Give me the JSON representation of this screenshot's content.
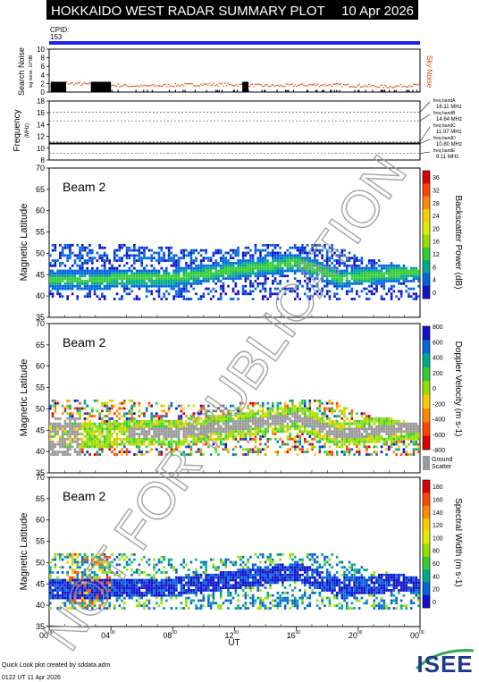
{
  "header": {
    "title": "HOKKAIDO WEST RADAR SUMMARY PLOT",
    "date": "10 Apr 2026",
    "cpid_label": "CPID:",
    "cpid_value": "153"
  },
  "footer": {
    "credit": "Quick Look plot created by sddata.adm",
    "timestamp": "0122 UT 11 Apr 2026",
    "logo_text": "ISEE"
  },
  "watermark": "NOT FOR PUBLICATION",
  "colors": {
    "header_bg": "#000000",
    "cpid_bar": "#2222ee",
    "sky_noise": "#dd4400",
    "ground_scatter": "#999999",
    "logo_blue": "#1e3a8a",
    "logo_green": "#2fa84f"
  },
  "chart_data": [
    {
      "id": "noise",
      "type": "scatter",
      "ylabel": "Search Noise",
      "ylabel_sub": "log noise, 10^dB",
      "ytick_labels": [
        "10",
        "8",
        "6",
        "4",
        "2",
        "0"
      ],
      "ylim": [
        0,
        10
      ],
      "side_label": "Sky Noise",
      "series": [
        {
          "name": "Sky Noise",
          "values": [
            1.8,
            2.2,
            2.0,
            1.9,
            1.7,
            1.6,
            1.5,
            1.6,
            1.7,
            1.8,
            1.9,
            1.9,
            1.8,
            1.7,
            1.6,
            1.6,
            1.7,
            1.8,
            1.8,
            1.7,
            1.6,
            1.5,
            1.4,
            1.6,
            1.8
          ]
        }
      ],
      "x_hours": [
        0,
        1,
        2,
        3,
        4,
        5,
        6,
        7,
        8,
        9,
        10,
        11,
        12,
        13,
        14,
        15,
        16,
        17,
        18,
        19,
        20,
        21,
        22,
        23,
        24
      ],
      "black_blocks_hours": [
        [
          0.1,
          1.1
        ],
        [
          2.7,
          4.0
        ],
        [
          12.5,
          12.9
        ]
      ]
    },
    {
      "id": "frequency",
      "type": "line",
      "ylabel": "Frequency",
      "ylabel_unit": "(MHz)",
      "ytick_labels": [
        "18",
        "16",
        "14",
        "12",
        "10",
        "8"
      ],
      "ylim": [
        8,
        18
      ],
      "values_mhz": [
        10.8
      ],
      "band_labels": [
        {
          "name": "freq bandA",
          "freq": "16.11 MHz"
        },
        {
          "name": "freq bandB",
          "freq": "14.64 MHz"
        },
        {
          "name": "freq bandC",
          "freq": "11.07 MHz"
        },
        {
          "name": "freq bandD",
          "freq": "10.80 MHz"
        },
        {
          "name": "freq bandE",
          "freq": "9.11 MHz"
        }
      ]
    },
    {
      "id": "power",
      "type": "heatmap",
      "beam_label": "Beam  2",
      "ylabel": "Magnetic Latitude",
      "ylim": [
        35,
        70
      ],
      "ytick_labels": [
        "70",
        "65",
        "60",
        "55",
        "50",
        "45",
        "40",
        "35"
      ],
      "colorbar_label": "Backscatter Power (dB)",
      "colorbar_ticks": [
        "36",
        "32",
        "28",
        "24",
        "20",
        "16",
        "12",
        "8",
        "4",
        "0"
      ],
      "colorbar_colors": [
        "#dd0000",
        "#ff4400",
        "#ff8800",
        "#ffcc00",
        "#ddee00",
        "#99dd00",
        "#33cc33",
        "#00aa88",
        "#0066dd",
        "#1111cc"
      ],
      "scatter_band": {
        "lat_min": 39,
        "lat_max_hours": [
          [
            0,
            52
          ],
          [
            4,
            52
          ],
          [
            8,
            51
          ],
          [
            12,
            51
          ],
          [
            14,
            52
          ],
          [
            18,
            52
          ],
          [
            20,
            49
          ],
          [
            24,
            46
          ]
        ]
      }
    },
    {
      "id": "velocity",
      "type": "heatmap",
      "beam_label": "Beam  2",
      "ylabel": "Magnetic Latitude",
      "ylim": [
        35,
        70
      ],
      "ytick_labels": [
        "70",
        "65",
        "60",
        "55",
        "50",
        "45",
        "40",
        "35"
      ],
      "colorbar_label": "Doppler Velocity (m s-1)",
      "colorbar_ticks": [
        "800",
        "600",
        "400",
        "200",
        "0",
        "-200",
        "-400",
        "-600",
        "-800"
      ],
      "colorbar_colors": [
        "#1111cc",
        "#0066dd",
        "#00aa88",
        "#33cc33",
        "#99dd00",
        "#ffcc00",
        "#ff8800",
        "#ff4400",
        "#dd0000"
      ],
      "ground_scatter_label": "Ground",
      "ground_scatter_label2": "Scatter"
    },
    {
      "id": "width",
      "type": "heatmap",
      "beam_label": "Beam  2",
      "ylabel": "Magnetic Latitude",
      "ylim": [
        35,
        70
      ],
      "ytick_labels": [
        "70",
        "65",
        "60",
        "55",
        "50",
        "45",
        "40",
        "35"
      ],
      "colorbar_label": "Spectral Width (m s-1)",
      "colorbar_ticks": [
        "180",
        "160",
        "140",
        "120",
        "100",
        "80",
        "60",
        "40",
        "20",
        "0"
      ],
      "colorbar_colors": [
        "#dd0000",
        "#ff4400",
        "#ff8800",
        "#ffcc00",
        "#ddee00",
        "#99dd00",
        "#33cc33",
        "#00aa88",
        "#0066dd",
        "#1111cc"
      ]
    }
  ],
  "xaxis": {
    "label": "UT",
    "ticks": [
      {
        "h": 0,
        "major": "00",
        "sup": "00"
      },
      {
        "h": 4,
        "major": "04",
        "sup": "00"
      },
      {
        "h": 8,
        "major": "08",
        "sup": "00"
      },
      {
        "h": 12,
        "major": "12",
        "sup": "00"
      },
      {
        "h": 16,
        "major": "16",
        "sup": "00"
      },
      {
        "h": 20,
        "major": "20",
        "sup": "00"
      },
      {
        "h": 24,
        "major": "00",
        "sup": "00"
      }
    ]
  }
}
